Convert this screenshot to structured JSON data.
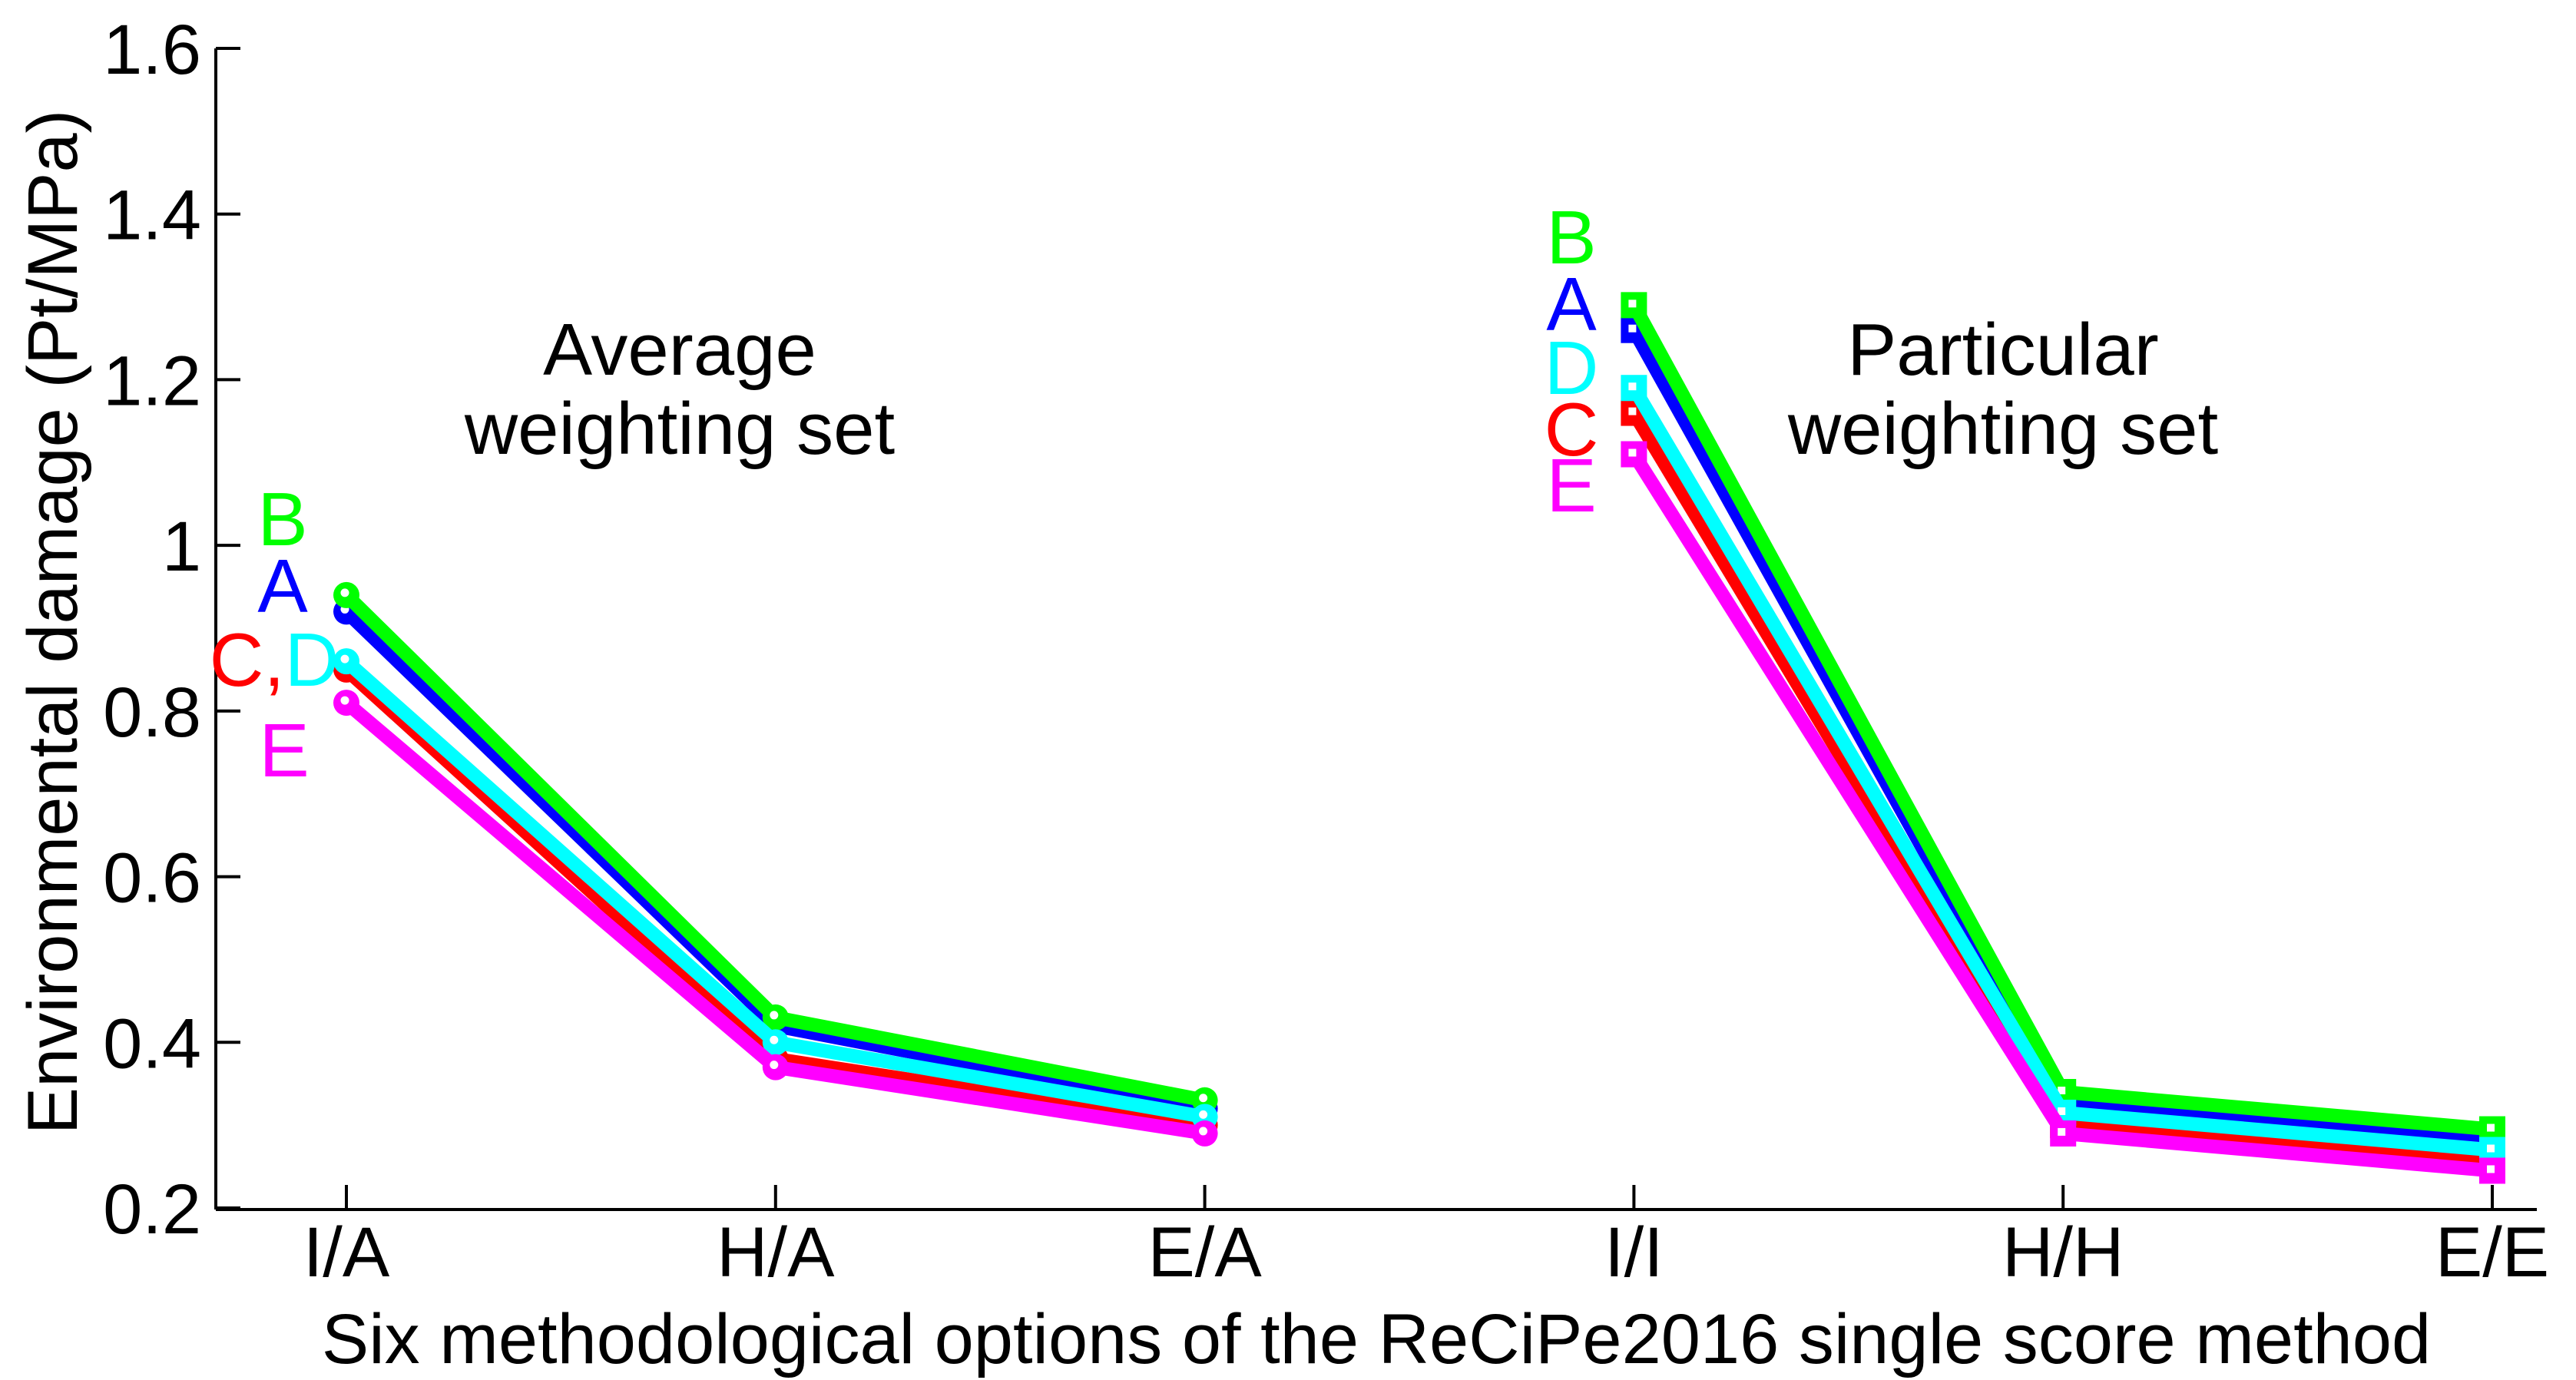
{
  "figure": {
    "background": "#FFFFFF",
    "axis_color": "#000000"
  },
  "chart_data": {
    "type": "line",
    "title": "",
    "xlabel": "Six methodological options of the ReCiPe2016 single score method",
    "ylabel": "Environmental damage (Pt/MPa)",
    "ylim": [
      0.2,
      1.6
    ],
    "grid": false,
    "legend_position": "letters annotated beside first point of each group",
    "y_ticks": {
      "values": [
        1.6,
        1.4,
        1.2,
        1.0,
        0.8,
        0.6,
        0.4,
        0.2
      ],
      "labels": [
        "1.6",
        "1.4",
        "1.2",
        "1",
        "0.8",
        "0.6",
        "0.4",
        "0.2"
      ]
    },
    "categories": [
      "I/A",
      "H/A",
      "E/A",
      "I/I",
      "H/H",
      "E/E"
    ],
    "groups": [
      {
        "name": "Average weighting set",
        "label_lines": [
          "Average",
          "weighting set"
        ],
        "categories": [
          "I/A",
          "H/A",
          "E/A"
        ],
        "point_indices": [
          0,
          1,
          2
        ],
        "marker": "circle",
        "label_x": 885
      },
      {
        "name": "Particular weighting set",
        "label_lines": [
          "Particular",
          "weighting set"
        ],
        "categories": [
          "I/I",
          "H/H",
          "E/E"
        ],
        "point_indices": [
          3,
          4,
          5
        ],
        "marker": "square",
        "label_x": 2608
      }
    ],
    "series": [
      {
        "name": "A",
        "color": "#0000FF",
        "values": [
          0.92,
          0.42,
          0.32,
          1.26,
          0.33,
          0.285
        ]
      },
      {
        "name": "B",
        "color": "#00FF00",
        "values": [
          0.94,
          0.43,
          0.33,
          1.29,
          0.34,
          0.295
        ]
      },
      {
        "name": "C",
        "color": "#FF0000",
        "values": [
          0.85,
          0.38,
          0.3,
          1.16,
          0.3,
          0.26
        ]
      },
      {
        "name": "D",
        "color": "#00FFFF",
        "values": [
          0.86,
          0.4,
          0.31,
          1.19,
          0.315,
          0.27
        ]
      },
      {
        "name": "E",
        "color": "#FF00FF",
        "values": [
          0.81,
          0.37,
          0.29,
          1.11,
          0.29,
          0.245
        ]
      }
    ],
    "series_label_stacks": {
      "left": [
        {
          "x": 368,
          "y": 710,
          "parts": [
            {
              "text": "B",
              "color": "#00FF00"
            }
          ]
        },
        {
          "x": 368,
          "y": 797,
          "parts": [
            {
              "text": "A",
              "color": "#0000FF"
            }
          ]
        },
        {
          "x": 357,
          "y": 893,
          "parts": [
            {
              "text": "C,",
              "color": "#FF0000"
            },
            {
              "text": "D",
              "color": "#00FFFF"
            }
          ]
        },
        {
          "x": 370,
          "y": 1011,
          "parts": [
            {
              "text": "E",
              "color": "#FF00FF"
            }
          ]
        }
      ],
      "right": [
        {
          "x": 2046,
          "y": 343,
          "parts": [
            {
              "text": "B",
              "color": "#00FF00"
            }
          ]
        },
        {
          "x": 2046,
          "y": 430,
          "parts": [
            {
              "text": "A",
              "color": "#0000FF"
            }
          ]
        },
        {
          "x": 2046,
          "y": 513,
          "parts": [
            {
              "text": "D",
              "color": "#00FFFF"
            }
          ]
        },
        {
          "x": 2046,
          "y": 593,
          "parts": [
            {
              "text": "C",
              "color": "#FF0000"
            }
          ]
        },
        {
          "x": 2046,
          "y": 666,
          "parts": [
            {
              "text": "E",
              "color": "#FF00FF"
            }
          ]
        }
      ]
    }
  }
}
